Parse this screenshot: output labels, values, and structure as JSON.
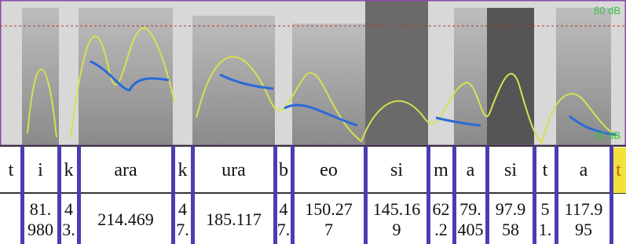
{
  "spectrogram": {
    "top_label": "80 dB",
    "bottom_label": "50 dB"
  },
  "segments": [
    {
      "label": "t"
    },
    {
      "label": "i",
      "value": "81.\n980"
    },
    {
      "label": "k",
      "value": "4\n3."
    },
    {
      "label": "ara",
      "value": "214.469"
    },
    {
      "label": "k",
      "value": "4\n7."
    },
    {
      "label": "ura",
      "value": "185.117"
    },
    {
      "label": "b",
      "value": "4\n7."
    },
    {
      "label": "eo",
      "value": "150.27\n7"
    },
    {
      "label": "si",
      "value": "145.16\n9"
    },
    {
      "label": "m",
      "value": "62\n.2"
    },
    {
      "label": "a",
      "value": "79.\n405"
    },
    {
      "label": "si",
      "value": "97.9\n58"
    },
    {
      "label": "t",
      "value": "5\n1."
    },
    {
      "label": "a",
      "value": "117.9\n95"
    },
    {
      "label": "t"
    }
  ]
}
